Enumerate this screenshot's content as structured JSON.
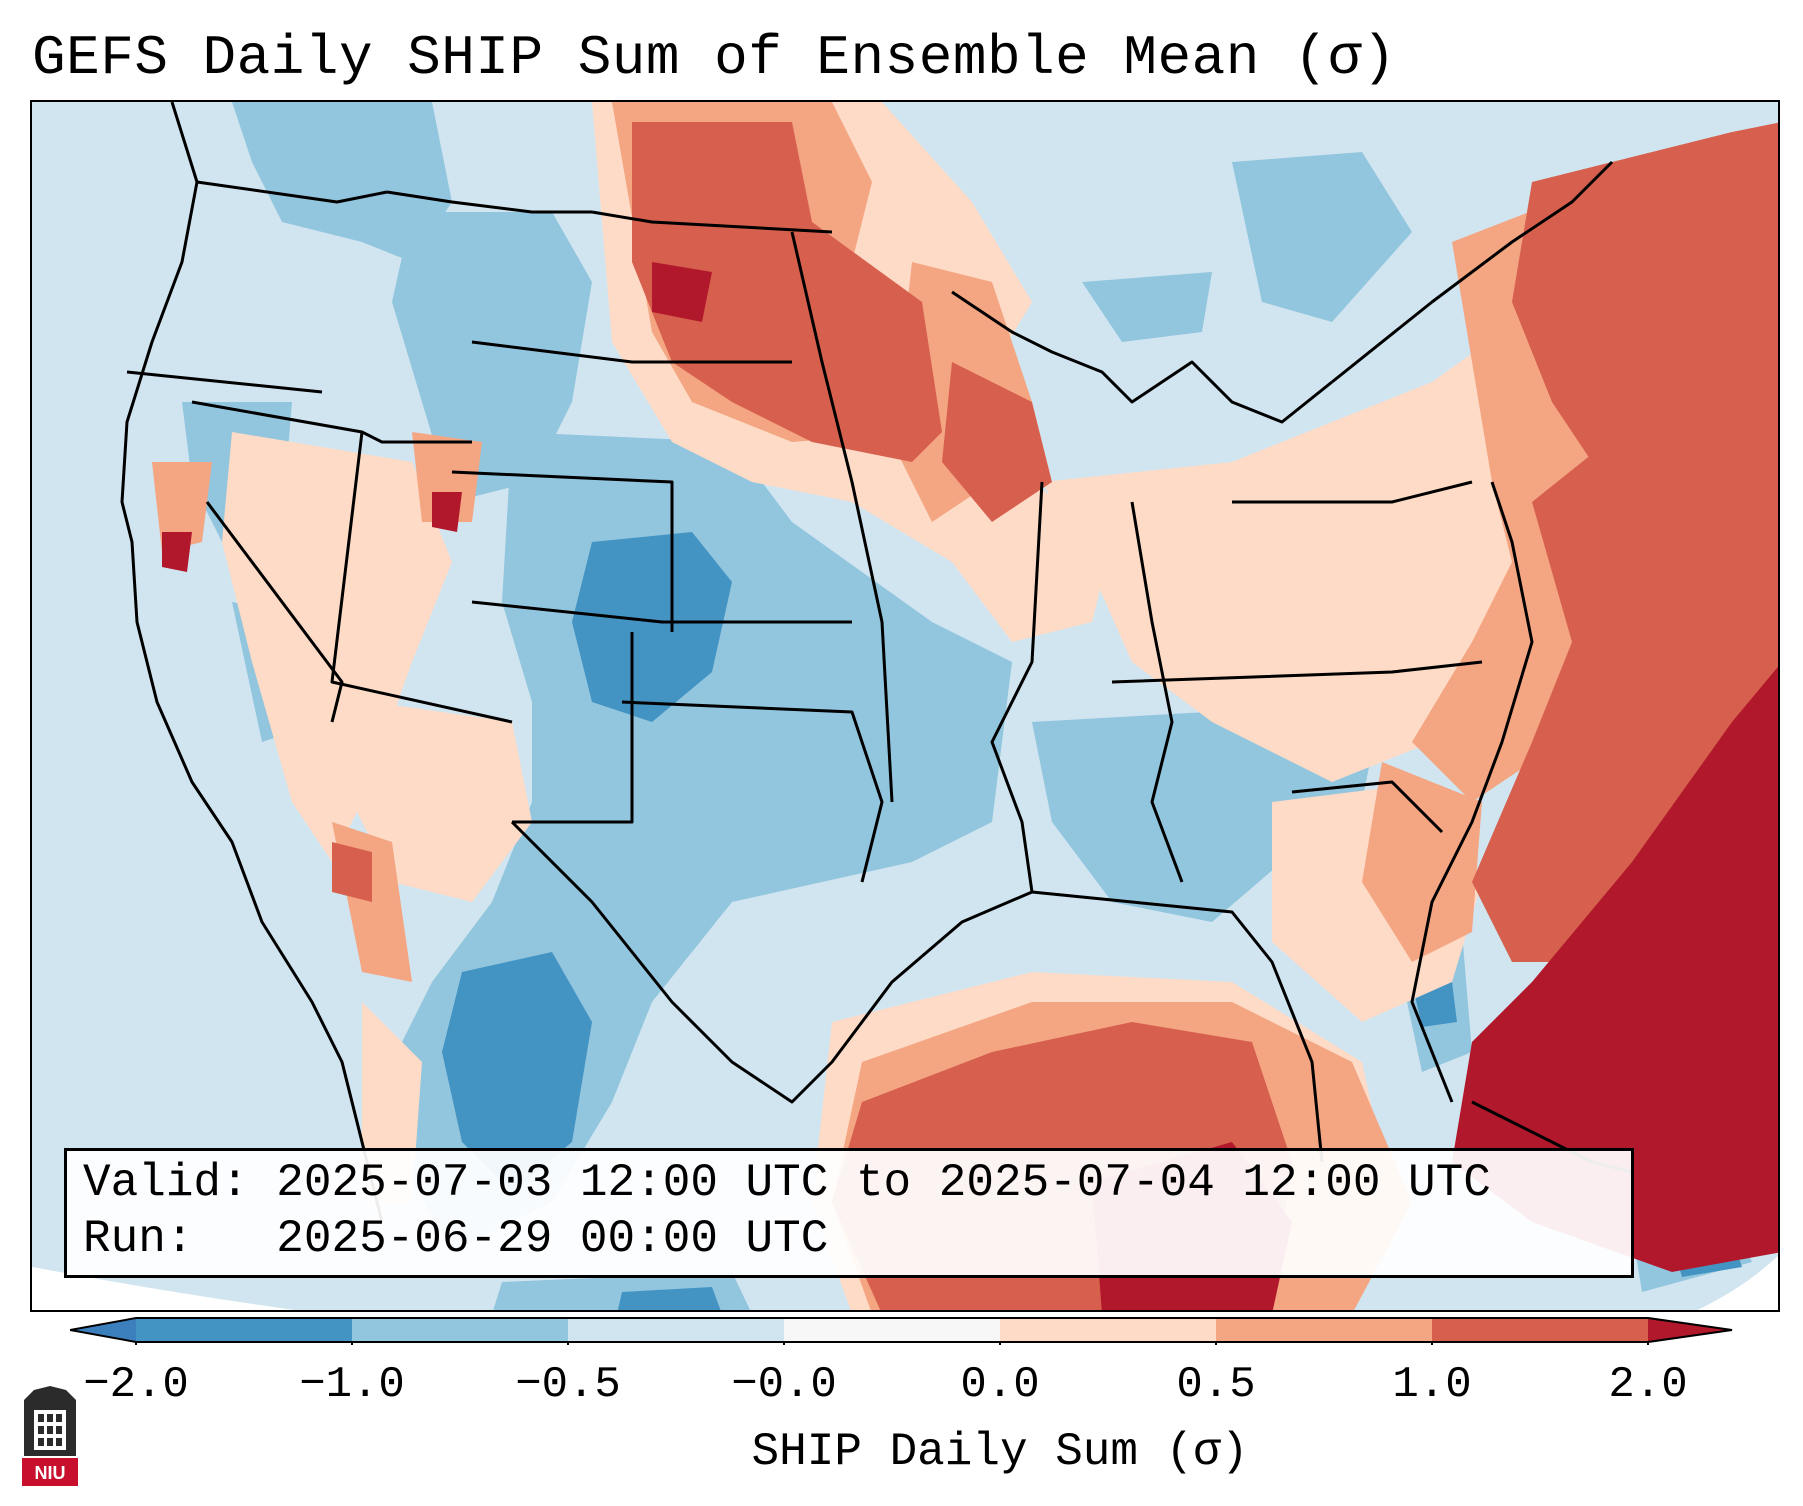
{
  "title": "GEFS Daily SHIP Sum of Ensemble Mean (σ)",
  "info": {
    "valid_label": "Valid:",
    "valid_value": "2025-07-03 12:00 UTC to 2025-07-04 12:00 UTC",
    "run_label": "Run:",
    "run_value": "2025-06-29 00:00 UTC"
  },
  "colorbar": {
    "label": "SHIP Daily Sum (σ)",
    "ticks": [
      "−2.0",
      "−1.0",
      "−0.5",
      "−0.0",
      "0.0",
      "0.5",
      "1.0",
      "2.0"
    ],
    "bins": [
      {
        "range": "<-2.0",
        "color": "#3c7fbd"
      },
      {
        "range": "-2.0 to -1.0",
        "color": "#4393c3"
      },
      {
        "range": "-1.0 to -0.5",
        "color": "#92c5de"
      },
      {
        "range": "-0.5 to -0.0",
        "color": "#d1e5f0"
      },
      {
        "range": "-0.0 to 0.0",
        "color": "#f7f7f7"
      },
      {
        "range": "0.0 to 0.5",
        "color": "#fddbc7"
      },
      {
        "range": "0.5 to 1.0",
        "color": "#f4a582"
      },
      {
        "range": "1.0 to 2.0",
        "color": "#d6604d"
      },
      {
        "range": ">2.0",
        "color": "#b2182b"
      }
    ]
  },
  "logo": {
    "name": "Northern Illinois University",
    "text": "NIU"
  },
  "map": {
    "projection": "Lambert Conformal",
    "region": "Contiguous United States",
    "field": "SHIP daily sum anomaly (σ)",
    "notable_regions": [
      {
        "region": "Northern Plains (ND/SD/MT)",
        "category": "1.0 to 2.0"
      },
      {
        "region": "Colorado Rockies",
        "category": "-2.0 to -1.0"
      },
      {
        "region": "Southern Texas / Mexico",
        "category": "-1.0 to -0.5"
      },
      {
        "region": "Western Atlantic",
        "category": ">2.0"
      },
      {
        "region": "Gulf of Mexico",
        "category": "0.5 to 1.0"
      }
    ]
  }
}
